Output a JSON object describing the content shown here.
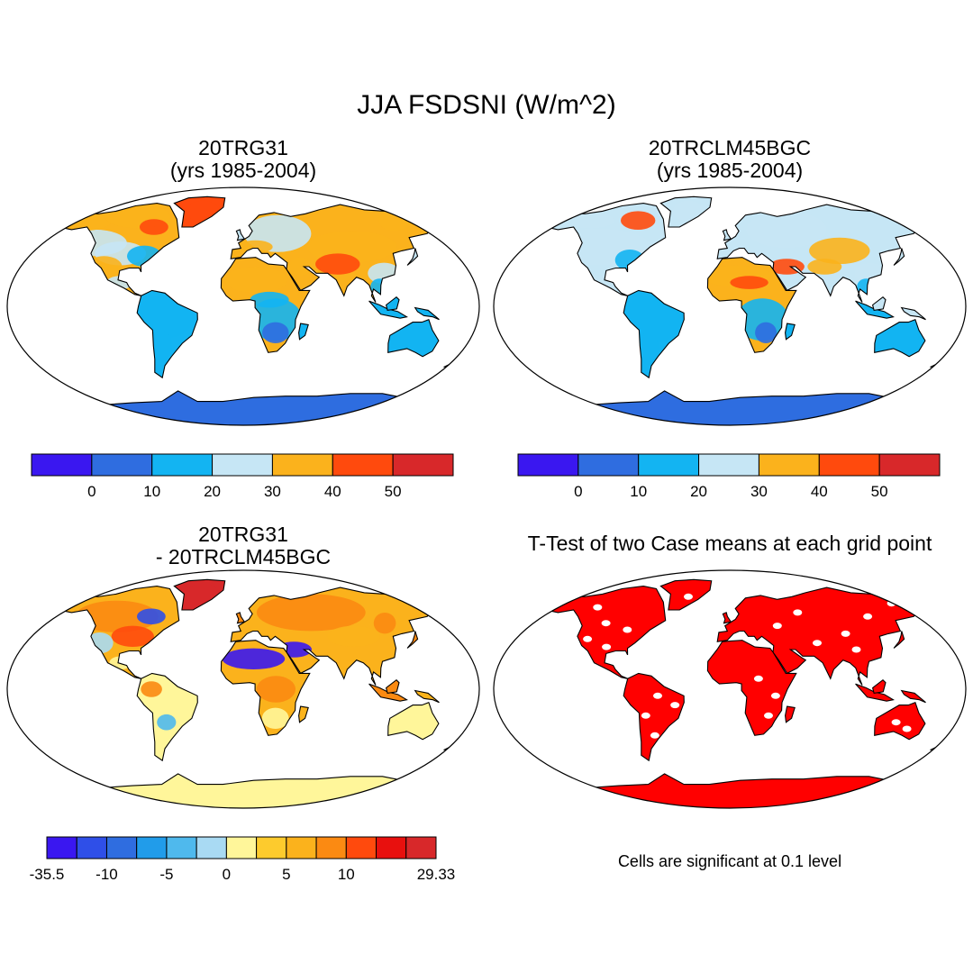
{
  "title": "JJA FSDSNI (W/m^2)",
  "panels": [
    {
      "line1": "20TRG31",
      "line2": "(yrs 1985-2004)"
    },
    {
      "line1": "20TRCLM45BGC",
      "line2": "(yrs 1985-2004)"
    },
    {
      "line1": "20TRG31",
      "line2": "- 20TRCLM45BGC"
    },
    {
      "line1": "T-Test of two Case means at each grid point",
      "line2": ""
    }
  ],
  "colorbar_top": {
    "colors": [
      "#3a17f0",
      "#2f6de0",
      "#13b4f2",
      "#c6e6f5",
      "#fbb21c",
      "#ff4a0d",
      "#d8282a"
    ],
    "labels": [
      "0",
      "10",
      "20",
      "30",
      "40",
      "50"
    ]
  },
  "colorbar_diff": {
    "colors": [
      "#3a17f0",
      "#2f4fe8",
      "#2f6de0",
      "#219cea",
      "#4fb9ed",
      "#a9daf3",
      "#fff69a",
      "#fdcb2d",
      "#fbb21c",
      "#fb8a12",
      "#ff4a0d",
      "#e8100e",
      "#d8282a"
    ],
    "labels": [
      "-35.5",
      "-10",
      "-5",
      "0",
      "5",
      "10",
      "29.33"
    ]
  },
  "note": "Cells are significant at 0.1 level",
  "palette": {
    "ocean": "#ffffff",
    "ttest_fill": "#ff0000",
    "coast": "#000000"
  }
}
